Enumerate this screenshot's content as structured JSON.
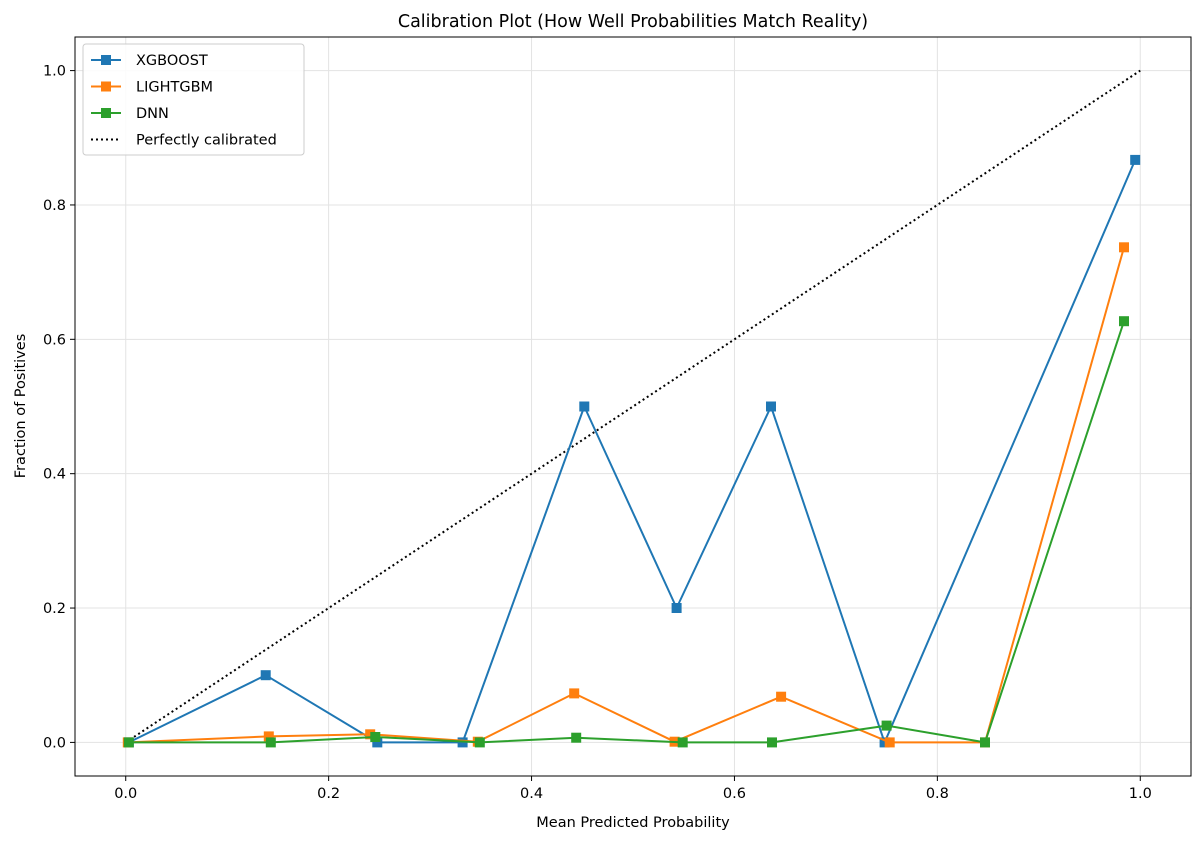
{
  "chart_data": {
    "type": "line",
    "title": "Calibration Plot (How Well Probabilities Match Reality)",
    "xlabel": "Mean Predicted Probability",
    "ylabel": "Fraction of Positives",
    "xlim": [
      -0.05,
      1.05
    ],
    "ylim": [
      -0.05,
      1.05
    ],
    "x_ticks": [
      0.0,
      0.2,
      0.4,
      0.6,
      0.8,
      1.0
    ],
    "x_tick_labels": [
      "0.0",
      "0.2",
      "0.4",
      "0.6",
      "0.8",
      "1.0"
    ],
    "y_ticks": [
      0.0,
      0.2,
      0.4,
      0.6,
      0.8,
      1.0
    ],
    "y_tick_labels": [
      "0.0",
      "0.2",
      "0.4",
      "0.6",
      "0.8",
      "1.0"
    ],
    "grid": true,
    "legend_position": "upper-left",
    "series": [
      {
        "name": "XGBOOST",
        "color": "#1f77b4",
        "marker": "square",
        "x": [
          0.003,
          0.138,
          0.248,
          0.332,
          0.452,
          0.543,
          0.636,
          0.748,
          0.995
        ],
        "y": [
          0.0,
          0.1,
          0.0,
          0.0,
          0.5,
          0.2,
          0.5,
          0.0,
          0.867
        ]
      },
      {
        "name": "LIGHTGBM",
        "color": "#ff7f0e",
        "marker": "square",
        "x": [
          0.002,
          0.141,
          0.241,
          0.347,
          0.442,
          0.541,
          0.646,
          0.753,
          0.847,
          0.984
        ],
        "y": [
          0.0,
          0.009,
          0.012,
          0.001,
          0.073,
          0.001,
          0.068,
          0.0,
          0.0,
          0.737
        ]
      },
      {
        "name": "DNN",
        "color": "#2ca02c",
        "marker": "square",
        "x": [
          0.003,
          0.143,
          0.246,
          0.349,
          0.444,
          0.549,
          0.637,
          0.75,
          0.847,
          0.984
        ],
        "y": [
          0.0,
          0.0,
          0.008,
          0.0,
          0.007,
          0.0,
          0.0,
          0.025,
          0.0,
          0.627
        ]
      }
    ],
    "reference_line": {
      "name": "Perfectly calibrated",
      "color": "#000000",
      "style": "dotted",
      "x": [
        0.0,
        1.0
      ],
      "y": [
        0.0,
        1.0
      ]
    }
  }
}
